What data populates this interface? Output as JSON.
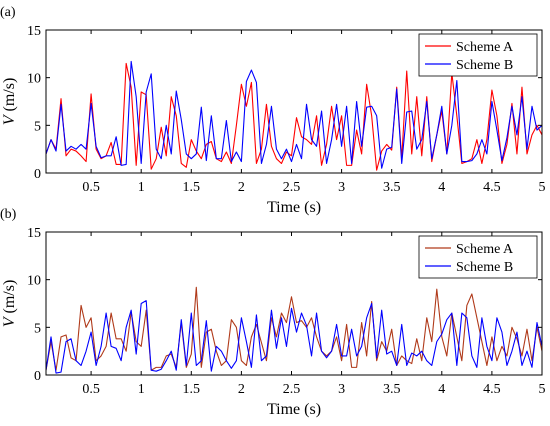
{
  "chart_data": [
    {
      "type": "line",
      "panel_label": "(a)",
      "xlabel": "Time (s)",
      "ylabel": "V (m/s)",
      "xlim": [
        0.05,
        5
      ],
      "ylim": [
        0,
        15
      ],
      "xticks": [
        0.5,
        1,
        1.5,
        2,
        2.5,
        3,
        3.5,
        4,
        4.5,
        5
      ],
      "xtick_labels": [
        "0.5",
        "1",
        "1.5",
        "2",
        "2.5",
        "3",
        "3.5",
        "4",
        "4.5",
        "5"
      ],
      "yticks": [
        0,
        5,
        10,
        15
      ],
      "ytick_labels": [
        "0",
        "5",
        "10",
        "15"
      ],
      "grid": false,
      "legend_position": "top-right",
      "x": [
        0.05,
        0.1,
        0.15,
        0.2,
        0.25,
        0.3,
        0.35,
        0.4,
        0.45,
        0.5,
        0.55,
        0.6,
        0.65,
        0.7,
        0.75,
        0.8,
        0.85,
        0.9,
        0.95,
        1.0,
        1.05,
        1.1,
        1.15,
        1.2,
        1.25,
        1.3,
        1.35,
        1.4,
        1.45,
        1.5,
        1.55,
        1.6,
        1.65,
        1.7,
        1.75,
        1.8,
        1.85,
        1.9,
        1.95,
        2.0,
        2.05,
        2.1,
        2.15,
        2.2,
        2.25,
        2.3,
        2.35,
        2.4,
        2.45,
        2.5,
        2.55,
        2.6,
        2.65,
        2.7,
        2.75,
        2.8,
        2.85,
        2.9,
        2.95,
        3.0,
        3.05,
        3.1,
        3.15,
        3.2,
        3.25,
        3.3,
        3.35,
        3.4,
        3.45,
        3.5,
        3.55,
        3.6,
        3.65,
        3.7,
        3.75,
        3.8,
        3.85,
        3.9,
        3.95,
        4.0,
        4.05,
        4.1,
        4.15,
        4.2,
        4.25,
        4.3,
        4.35,
        4.4,
        4.45,
        4.5,
        4.55,
        4.6,
        4.65,
        4.7,
        4.75,
        4.8,
        4.85,
        4.9,
        4.95,
        5.0
      ],
      "series": [
        {
          "name": "Scheme A",
          "color": "#ff0000",
          "values": [
            2.0,
            3.5,
            2.5,
            7.8,
            1.8,
            2.5,
            2.3,
            1.8,
            1.2,
            8.3,
            2.5,
            1.5,
            1.8,
            3.2,
            0.9,
            0.9,
            11.5,
            9.0,
            0.8,
            8.5,
            8.2,
            0.4,
            1.5,
            4.8,
            1.8,
            8.0,
            6.0,
            1.0,
            0.6,
            3.5,
            2.3,
            1.5,
            3.0,
            3.3,
            1.5,
            1.2,
            2.2,
            1.0,
            5.0,
            9.3,
            7.0,
            9.5,
            1.0,
            2.5,
            7.2,
            2.8,
            1.5,
            1.0,
            2.2,
            1.8,
            5.8,
            3.8,
            3.5,
            3.0,
            6.0,
            0.8,
            3.0,
            7.0,
            3.5,
            6.0,
            0.8,
            0.8,
            4.5,
            2.0,
            9.3,
            6.0,
            0.3,
            2.3,
            3.0,
            2.4,
            9.0,
            1.5,
            10.7,
            2.0,
            8.0,
            1.8,
            8.0,
            1.2,
            4.0,
            6.5,
            2.0,
            10.5,
            6.0,
            1.0,
            1.2,
            1.5,
            3.5,
            1.0,
            3.5,
            8.7,
            6.0,
            1.0,
            3.0,
            7.3,
            2.0,
            9.0,
            2.0,
            4.0,
            5.0,
            4.0
          ]
        },
        {
          "name": "Scheme B",
          "color": "#0000ff",
          "values": [
            2.0,
            3.5,
            2.3,
            7.2,
            2.3,
            2.8,
            2.5,
            3.0,
            2.5,
            7.3,
            2.8,
            1.6,
            1.8,
            1.8,
            3.8,
            0.8,
            0.9,
            11.7,
            8.0,
            1.0,
            8.5,
            10.4,
            2.5,
            1.5,
            5.0,
            2.0,
            8.6,
            5.6,
            2.0,
            1.5,
            2.0,
            6.9,
            1.3,
            6.0,
            1.5,
            1.5,
            5.5,
            1.2,
            2.2,
            1.2,
            9.6,
            10.8,
            9.5,
            1.0,
            3.0,
            7.0,
            2.5,
            1.5,
            2.5,
            1.2,
            3.0,
            1.5,
            7.2,
            3.5,
            2.8,
            6.5,
            1.0,
            3.5,
            7.2,
            2.8,
            7.0,
            1.0,
            7.5,
            2.8,
            6.9,
            7.0,
            6.0,
            0.5,
            2.5,
            2.7,
            8.8,
            1.0,
            6.4,
            6.5,
            2.5,
            3.5,
            7.5,
            1.5,
            4.0,
            7.0,
            2.0,
            5.0,
            9.7,
            1.2,
            1.2,
            1.3,
            2.0,
            3.5,
            2.0,
            7.5,
            4.5,
            1.3,
            3.7,
            7.0,
            4.0,
            8.0,
            2.5,
            7.0,
            4.5,
            5.0
          ]
        }
      ]
    },
    {
      "type": "line",
      "panel_label": "(b)",
      "xlabel": "Time (s)",
      "ylabel": "V (m/s)",
      "xlim": [
        0.05,
        5
      ],
      "ylim": [
        0,
        15
      ],
      "xticks": [
        0.5,
        1,
        1.5,
        2,
        2.5,
        3,
        3.5,
        4,
        4.5,
        5
      ],
      "xtick_labels": [
        "0.5",
        "1",
        "1.5",
        "2",
        "2.5",
        "3",
        "3.5",
        "4",
        "4.5",
        "5"
      ],
      "yticks": [
        0,
        5,
        10,
        15
      ],
      "ytick_labels": [
        "0",
        "5",
        "10",
        "15"
      ],
      "grid": false,
      "legend_position": "top-right",
      "x": [
        0.05,
        0.1,
        0.15,
        0.2,
        0.25,
        0.3,
        0.35,
        0.4,
        0.45,
        0.5,
        0.55,
        0.6,
        0.65,
        0.7,
        0.75,
        0.8,
        0.85,
        0.9,
        0.95,
        1.0,
        1.05,
        1.1,
        1.15,
        1.2,
        1.25,
        1.3,
        1.35,
        1.4,
        1.45,
        1.5,
        1.55,
        1.6,
        1.65,
        1.7,
        1.75,
        1.8,
        1.85,
        1.9,
        1.95,
        2.0,
        2.05,
        2.1,
        2.15,
        2.2,
        2.25,
        2.3,
        2.35,
        2.4,
        2.45,
        2.5,
        2.55,
        2.6,
        2.65,
        2.7,
        2.75,
        2.8,
        2.85,
        2.9,
        2.95,
        3.0,
        3.05,
        3.1,
        3.15,
        3.2,
        3.25,
        3.3,
        3.35,
        3.4,
        3.45,
        3.5,
        3.55,
        3.6,
        3.65,
        3.7,
        3.75,
        3.8,
        3.85,
        3.9,
        3.95,
        4.0,
        4.05,
        4.1,
        4.15,
        4.2,
        4.25,
        4.3,
        4.35,
        4.4,
        4.45,
        4.5,
        4.55,
        4.6,
        4.65,
        4.7,
        4.75,
        4.8,
        4.85,
        4.9,
        4.95,
        5.0
      ],
      "series": [
        {
          "name": "Scheme A",
          "color": "#b03a1a",
          "values": [
            0.5,
            3.5,
            0.5,
            4.0,
            4.2,
            1.8,
            1.5,
            7.3,
            5.0,
            6.0,
            1.5,
            2.0,
            3.0,
            6.5,
            3.8,
            3.8,
            2.5,
            6.6,
            3.5,
            3.0,
            6.8,
            0.5,
            0.8,
            0.8,
            2.0,
            2.2,
            0.8,
            5.5,
            0.8,
            2.2,
            9.2,
            0.8,
            4.5,
            4.8,
            2.5,
            1.0,
            1.5,
            5.8,
            5.0,
            1.5,
            1.0,
            4.0,
            5.3,
            3.4,
            1.5,
            6.0,
            4.0,
            6.5,
            5.5,
            8.2,
            5.5,
            5.7,
            5.0,
            6.0,
            4.0,
            2.5,
            2.0,
            2.5,
            4.0,
            1.5,
            5.3,
            0.8,
            0.8,
            5.5,
            2.0,
            7.7,
            1.5,
            3.5,
            2.5,
            4.8,
            1.0,
            2.0,
            1.5,
            1.2,
            3.8,
            1.5,
            6.0,
            3.5,
            9.0,
            4.0,
            2.0,
            6.5,
            4.0,
            1.5,
            7.3,
            8.5,
            6.0,
            3.5,
            1.0,
            4.0,
            1.5,
            3.0,
            2.0,
            5.0,
            3.8,
            2.0,
            4.8,
            1.5,
            5.0,
            2.5
          ]
        },
        {
          "name": "Scheme B",
          "color": "#0000ff",
          "values": [
            0.5,
            4.0,
            0.2,
            0.3,
            3.5,
            3.8,
            1.5,
            1.0,
            2.5,
            4.5,
            1.0,
            3.0,
            6.5,
            3.0,
            2.8,
            1.5,
            5.0,
            6.8,
            2.2,
            7.5,
            7.8,
            0.5,
            0.4,
            0.6,
            1.5,
            2.5,
            0.5,
            5.8,
            1.0,
            6.5,
            1.0,
            1.5,
            5.7,
            0.4,
            3.0,
            2.5,
            1.5,
            0.7,
            1.5,
            6.0,
            3.5,
            0.8,
            6.3,
            1.5,
            2.0,
            6.8,
            2.8,
            6.0,
            3.0,
            7.0,
            4.5,
            6.5,
            5.2,
            2.0,
            6.5,
            2.5,
            1.8,
            2.5,
            5.3,
            2.0,
            2.0,
            4.8,
            2.0,
            3.0,
            6.0,
            7.5,
            1.8,
            6.8,
            2.2,
            2.5,
            1.0,
            5.3,
            1.0,
            2.3,
            2.0,
            2.5,
            1.5,
            1.0,
            3.5,
            4.3,
            5.8,
            6.5,
            1.0,
            6.5,
            6.0,
            2.0,
            0.8,
            6.0,
            3.0,
            1.5,
            6.0,
            4.5,
            1.0,
            2.5,
            4.5,
            1.0,
            2.5,
            0.8,
            5.5,
            3.0
          ]
        }
      ]
    }
  ]
}
